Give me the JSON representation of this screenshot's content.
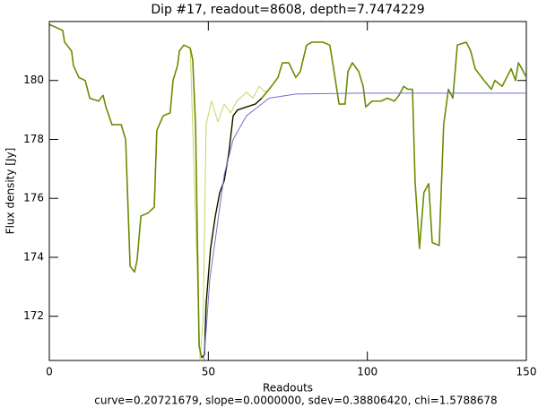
{
  "chart_data": {
    "type": "line",
    "title": "Dip #17, readout=8608, depth=7.7474229",
    "x_label": "Readouts",
    "y_label": "Flux density [Jy]",
    "footer": "curve=0.20721679, slope=0.0000000, sdev=0.38806420, chi=1.5788678",
    "xlim": [
      0,
      150
    ],
    "ylim": [
      170.5,
      182
    ],
    "xticks": [
      0,
      50,
      100,
      150
    ],
    "yticks": [
      172,
      174,
      176,
      178,
      180
    ],
    "series": [
      {
        "color": "#c0d860",
        "width": 1,
        "x": [
          44.3,
          47.4,
          48.4,
          49.3,
          51,
          53,
          55,
          57,
          59,
          62,
          64,
          66,
          68,
          70
        ],
        "values": [
          181.1,
          170.5,
          172,
          178.5,
          179.3,
          178.6,
          179.2,
          178.9,
          179.3,
          179.6,
          179.4,
          179.8,
          179.6,
          179.8
        ]
      },
      {
        "color": "#6b8c00",
        "width": 1.6,
        "x": [
          0,
          4.2,
          4.8,
          7,
          7.6,
          9.3,
          11.3,
          12.7,
          15.5,
          16.9,
          17.8,
          19.7,
          22.6,
          24,
          25.4,
          26.8,
          27.6,
          28.8,
          31,
          33,
          33.8,
          35.8,
          38,
          38.9,
          40.3,
          40.9,
          42.3,
          44.3,
          45.1,
          46,
          47.1,
          47.9,
          48.8,
          49.3,
          50.7,
          52.2,
          53.6,
          55,
          56.4,
          57.8,
          59.2,
          62,
          64.8,
          66.8,
          69.1,
          71.9,
          73.3,
          75.3,
          77.5,
          78.9,
          80.9,
          82.6,
          86,
          88.2,
          89.4,
          91.1,
          93,
          93.9,
          95.3,
          97.3,
          98.7,
          99.5,
          101.5,
          104.3,
          106.3,
          108.5,
          110,
          111.4,
          112.8,
          114.2,
          115,
          116.4,
          117.8,
          119.3,
          120.4,
          122.6,
          124,
          125.5,
          126.9,
          128.3,
          131.1,
          132.5,
          133.9,
          136.7,
          139,
          140.1,
          142.4,
          145.2,
          146.6,
          147.5,
          148.6,
          150
        ],
        "values": [
          181.9,
          181.7,
          181.3,
          181.0,
          180.5,
          180.1,
          180.0,
          179.4,
          179.3,
          179.5,
          179.1,
          178.5,
          178.5,
          178.0,
          173.7,
          173.5,
          173.9,
          175.4,
          175.5,
          175.7,
          178.3,
          178.8,
          178.9,
          180.0,
          180.5,
          181.0,
          181.2,
          181.1,
          180.7,
          178.4,
          171.0,
          170.6,
          170.7,
          172.4,
          174.3,
          175.4,
          176.2,
          176.6,
          177.5,
          178.8,
          179.0,
          179.1,
          179.2,
          179.4,
          179.7,
          180.1,
          180.6,
          180.6,
          180.1,
          180.3,
          181.2,
          181.3,
          181.3,
          181.2,
          180.4,
          179.2,
          179.2,
          180.3,
          180.6,
          180.3,
          179.8,
          179.1,
          179.3,
          179.3,
          179.4,
          179.3,
          179.5,
          179.8,
          179.7,
          179.7,
          176.6,
          174.3,
          176.2,
          176.5,
          174.5,
          174.4,
          178.5,
          179.7,
          179.4,
          181.2,
          181.3,
          181.0,
          180.4,
          180.0,
          179.7,
          180.0,
          179.8,
          180.4,
          180.0,
          180.6,
          180.4,
          180.1
        ]
      },
      {
        "color": "#000000",
        "width": 1,
        "x": [
          47.9,
          48.8,
          49.3,
          50.7,
          52.2,
          53.6,
          55,
          56.4,
          57.8,
          59.2,
          62,
          64.8,
          66.8
        ],
        "values": [
          170.6,
          170.7,
          172.4,
          174.3,
          175.4,
          176.2,
          176.6,
          177.5,
          178.8,
          179.0,
          179.1,
          179.2,
          179.4
        ]
      },
      {
        "color": "#7070d0",
        "width": 1,
        "x": [
          48.5,
          49.3,
          50.5,
          52.2,
          55,
          57.8,
          62,
          69.1,
          77.5,
          97.3,
          150
        ],
        "values": [
          170.5,
          171.5,
          173.3,
          174.6,
          176.8,
          178.0,
          178.8,
          179.4,
          179.54,
          179.57,
          179.57
        ]
      }
    ]
  }
}
